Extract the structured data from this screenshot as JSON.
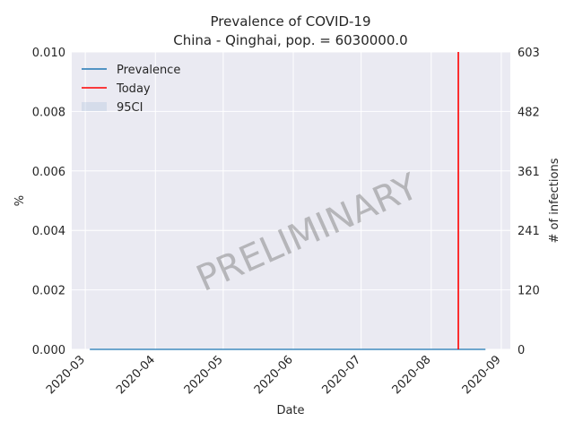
{
  "chart_data": {
    "type": "line",
    "title": "Prevalence of COVID-19",
    "subtitle": "China - Qinghai, pop. = 6030000.0",
    "xlabel": "Date",
    "ylabel": "%",
    "ylabel_right": "# of infections",
    "x_ticks": [
      "2020-03",
      "2020-04",
      "2020-05",
      "2020-06",
      "2020-07",
      "2020-08",
      "2020-09"
    ],
    "x_tick_dates": [
      "2020-03-01",
      "2020-04-01",
      "2020-05-01",
      "2020-06-01",
      "2020-07-01",
      "2020-08-01",
      "2020-09-01"
    ],
    "xlim": [
      "2020-02-24",
      "2020-09-05"
    ],
    "ylim": [
      0,
      0.01
    ],
    "y_ticks": [
      "0.000",
      "0.002",
      "0.004",
      "0.006",
      "0.008",
      "0.010"
    ],
    "y_tick_values": [
      0,
      0.002,
      0.004,
      0.006,
      0.008,
      0.01
    ],
    "y2_ticks": [
      "0",
      "120",
      "241",
      "361",
      "482",
      "603"
    ],
    "series": [
      {
        "name": "Prevalence",
        "color": "#1f77b4",
        "x": [
          "2020-03-03",
          "2020-08-25"
        ],
        "values": [
          0,
          0
        ]
      }
    ],
    "today": {
      "name": "Today",
      "date": "2020-08-13",
      "color": "#ff0000"
    },
    "ci": {
      "name": "95CI",
      "color": "#b0c4de"
    },
    "legend": "top-left",
    "grid": true,
    "watermark": "PRELIMINARY"
  }
}
